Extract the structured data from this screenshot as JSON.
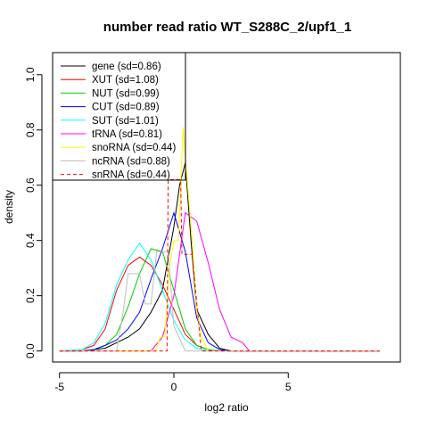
{
  "chart_data": {
    "type": "line",
    "title": "number read ratio WT_S288C_2/upf1_1",
    "xlabel": "log2 ratio",
    "ylabel": "density",
    "xlim": [
      -5.3,
      9.9
    ],
    "ylim": [
      -0.04,
      1.08
    ],
    "xticks": [
      -5,
      0,
      5
    ],
    "xtick_labels": [
      "-5",
      "0",
      "5"
    ],
    "yticks": [
      0.0,
      0.2,
      0.4,
      0.6,
      0.8,
      1.0
    ],
    "ytick_labels": [
      "0.0",
      "0.2",
      "0.4",
      "0.6",
      "0.8",
      "1.0"
    ],
    "grid": false,
    "legend_position": "top-left",
    "series": [
      {
        "name": "gene (sd=0.86)",
        "color": "#000000",
        "dash": false,
        "x": [
          -5.0,
          -4.0,
          -3.5,
          -3.0,
          -2.5,
          -2.0,
          -1.5,
          -1.0,
          -0.5,
          0.0,
          0.25,
          0.5,
          0.75,
          1.0,
          1.5,
          2.0,
          2.5,
          3.0,
          9.0
        ],
        "y": [
          0.0,
          0.0,
          0.005,
          0.01,
          0.03,
          0.05,
          0.08,
          0.14,
          0.22,
          0.45,
          0.6,
          0.68,
          0.4,
          0.15,
          0.06,
          0.01,
          0.0,
          0.0,
          0.0
        ]
      },
      {
        "name": "XUT (sd=1.08)",
        "color": "#ff0000",
        "dash": false,
        "x": [
          -5.0,
          -4.0,
          -3.5,
          -3.0,
          -2.5,
          -2.0,
          -1.5,
          -1.0,
          -0.5,
          0.0,
          0.5,
          1.0,
          1.5,
          2.0,
          2.5,
          9.0
        ],
        "y": [
          0.0,
          0.005,
          0.02,
          0.08,
          0.22,
          0.31,
          0.34,
          0.31,
          0.24,
          0.15,
          0.06,
          0.02,
          0.005,
          0.0,
          0.0,
          0.0
        ]
      },
      {
        "name": "NUT (sd=0.99)",
        "color": "#00cc00",
        "dash": false,
        "x": [
          -5.0,
          -4.0,
          -3.5,
          -3.0,
          -2.5,
          -2.0,
          -1.5,
          -1.0,
          -0.5,
          0.0,
          0.5,
          1.0,
          1.5,
          2.0,
          2.5,
          9.0
        ],
        "y": [
          0.0,
          0.0,
          0.005,
          0.02,
          0.06,
          0.16,
          0.28,
          0.37,
          0.36,
          0.22,
          0.08,
          0.02,
          0.005,
          0.0,
          0.0,
          0.0
        ]
      },
      {
        "name": "CUT (sd=0.89)",
        "color": "#0000ff",
        "dash": false,
        "x": [
          -5.0,
          -4.0,
          -3.5,
          -3.0,
          -2.5,
          -2.0,
          -1.5,
          -1.0,
          -0.5,
          0.0,
          0.5,
          1.0,
          1.5,
          2.0,
          2.5,
          9.0
        ],
        "y": [
          0.0,
          0.0,
          0.005,
          0.02,
          0.04,
          0.08,
          0.14,
          0.26,
          0.37,
          0.5,
          0.36,
          0.12,
          0.03,
          0.005,
          0.0,
          0.0
        ]
      },
      {
        "name": "SUT (sd=1.01)",
        "color": "#00ffff",
        "dash": false,
        "x": [
          -5.0,
          -4.0,
          -3.5,
          -3.0,
          -2.5,
          -2.0,
          -1.5,
          -1.0,
          -0.5,
          0.0,
          0.5,
          1.0,
          1.5,
          2.0,
          9.0
        ],
        "y": [
          0.0,
          0.005,
          0.03,
          0.1,
          0.24,
          0.33,
          0.39,
          0.33,
          0.22,
          0.11,
          0.04,
          0.01,
          0.0,
          0.0,
          0.0
        ]
      },
      {
        "name": "tRNA (sd=0.81)",
        "color": "#ff00ff",
        "dash": false,
        "x": [
          -5.0,
          -1.0,
          -0.5,
          0.0,
          0.5,
          1.0,
          1.5,
          2.0,
          2.5,
          3.0,
          3.3,
          9.0
        ],
        "y": [
          0.0,
          0.0,
          0.05,
          0.2,
          0.5,
          0.47,
          0.32,
          0.15,
          0.05,
          0.03,
          0.0,
          0.0
        ]
      },
      {
        "name": "snoRNA (sd=0.44)",
        "color": "#ffff00",
        "dash": false,
        "x": [
          -5.0,
          -1.0,
          -0.8,
          -0.6,
          -0.4,
          -0.2,
          0.0,
          0.2,
          0.4,
          0.6,
          0.8,
          1.0,
          1.2,
          1.5,
          9.0
        ],
        "y": [
          0.0,
          0.0,
          0.0,
          0.05,
          0.05,
          0.3,
          0.4,
          0.4,
          0.81,
          0.6,
          0.4,
          0.15,
          0.05,
          0.0,
          0.0
        ]
      },
      {
        "name": "ncRNA (sd=0.88)",
        "color": "#bebebe",
        "dash": false,
        "x": [
          -5.0,
          -2.5,
          -2.2,
          -2.0,
          -1.5,
          -1.25,
          -1.0,
          -0.75,
          -0.5,
          -0.25,
          0.0,
          0.5,
          9.0
        ],
        "y": [
          0.0,
          0.0,
          0.15,
          0.28,
          0.28,
          0.17,
          0.17,
          0.36,
          0.36,
          0.36,
          0.09,
          0.0,
          0.0
        ]
      },
      {
        "name": "snRNA (sd=0.44)",
        "color": "#ff0000",
        "dash": true,
        "x": [
          -5.0,
          -1.0,
          -0.5,
          -0.3,
          -0.25,
          0.0,
          0.3,
          0.35,
          0.6,
          0.8,
          1.2,
          1.4,
          9.0
        ],
        "y": [
          0.0,
          0.0,
          0.0,
          0.0,
          0.62,
          0.62,
          0.62,
          0.35,
          0.35,
          0.35,
          0.0,
          0.0,
          0.0
        ]
      }
    ]
  }
}
